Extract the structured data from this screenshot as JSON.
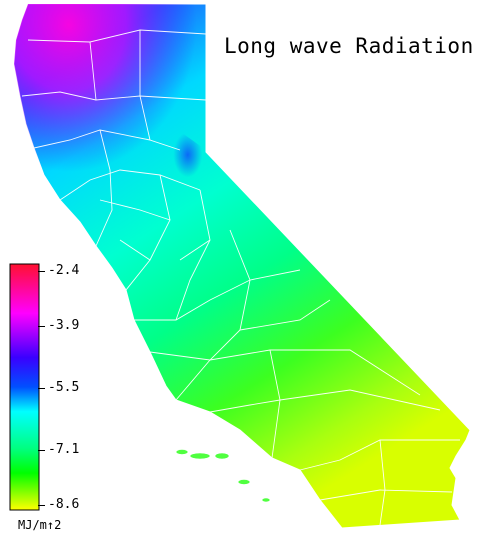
{
  "map": {
    "title": "Long wave Radiation",
    "region": "California",
    "colormap": [
      "#ff0030",
      "#ff00ff",
      "#3a00ff",
      "#0040ff",
      "#00ffff",
      "#00ff80",
      "#00ff00",
      "#ffff00"
    ]
  },
  "legend": {
    "unit": "MJ/m↑2",
    "ticks": [
      "-2.4",
      "-3.9",
      "-5.5",
      "-7.1",
      "-8.6"
    ]
  }
}
